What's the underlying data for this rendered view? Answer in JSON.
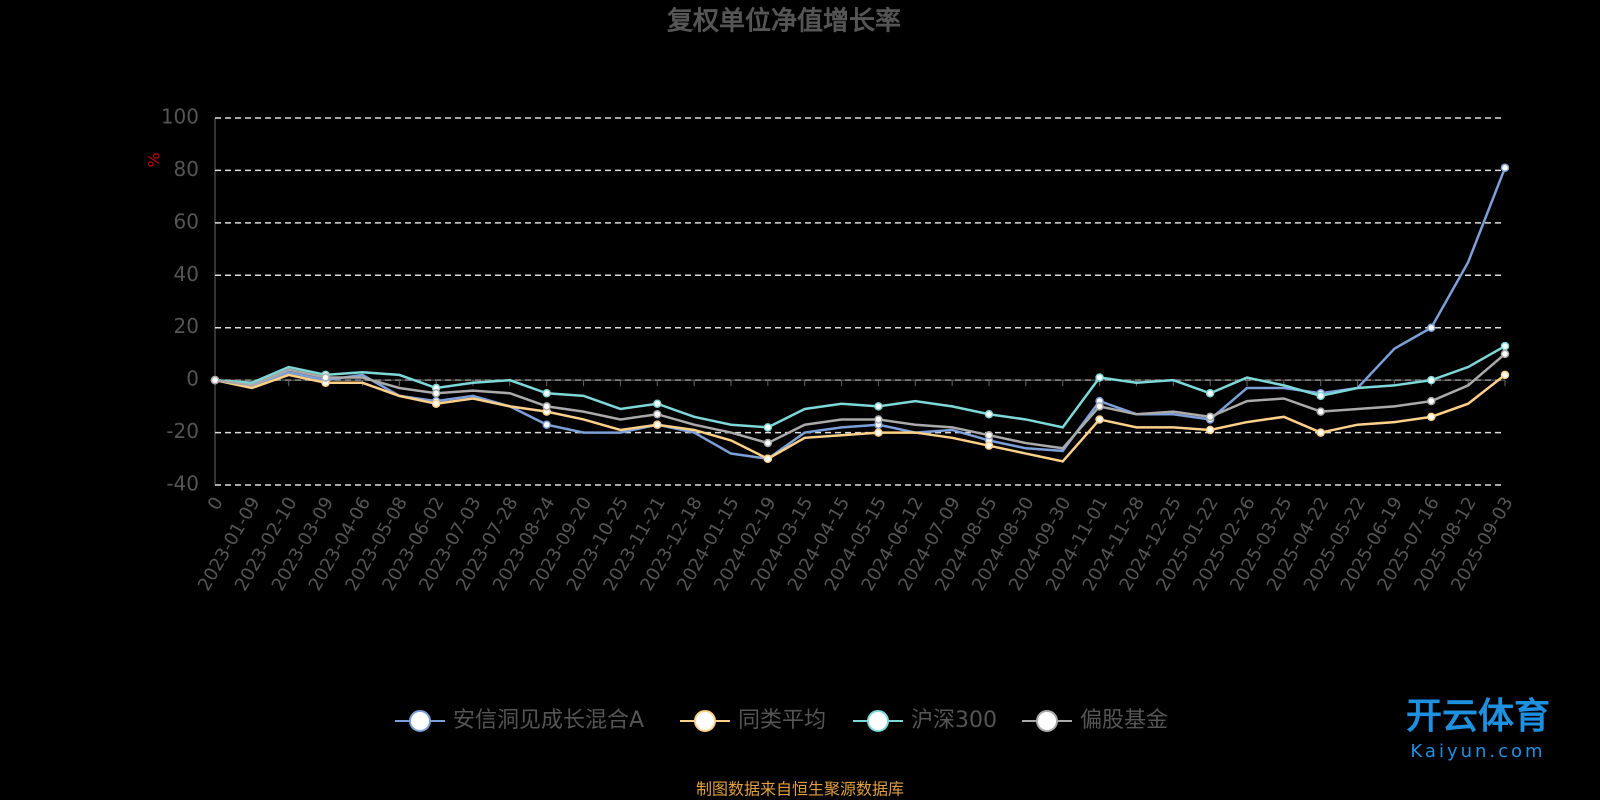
{
  "chart_data": {
    "type": "line",
    "title": "复权单位净值增长率",
    "y_label": "%",
    "categories": [
      "0",
      "2023-01-09",
      "2023-02-10",
      "2023-03-09",
      "2023-04-06",
      "2023-05-08",
      "2023-06-02",
      "2023-07-03",
      "2023-07-28",
      "2023-08-24",
      "2023-09-20",
      "2023-10-25",
      "2023-11-21",
      "2023-12-18",
      "2024-01-15",
      "2024-02-19",
      "2024-03-15",
      "2024-04-15",
      "2024-05-15",
      "2024-06-12",
      "2024-07-09",
      "2024-08-05",
      "2024-08-30",
      "2024-09-30",
      "2024-11-01",
      "2024-11-28",
      "2024-12-25",
      "2025-01-22",
      "2025-02-26",
      "2025-03-25",
      "2025-04-22",
      "2025-05-22",
      "2025-06-19",
      "2025-07-16",
      "2025-08-12",
      "2025-09-03"
    ],
    "series": [
      {
        "name": "安信洞见成长混合A",
        "color": "#7da0d8",
        "values": [
          0,
          -2,
          3,
          0,
          2,
          -6,
          -8,
          -6,
          -10,
          -17,
          -20,
          -20,
          -17,
          -20,
          -28,
          -30,
          -20,
          -18,
          -17,
          -20,
          -19,
          -23,
          -26,
          -27,
          -8,
          -13,
          -13,
          -15,
          -3,
          -3,
          -5,
          -3,
          12,
          20,
          45,
          81
        ]
      },
      {
        "name": "同类平均",
        "color": "#ffd08a",
        "values": [
          0,
          -3,
          2,
          -1,
          -1,
          -6,
          -9,
          -7,
          -10,
          -12,
          -15,
          -19,
          -17,
          -19,
          -23,
          -30,
          -22,
          -21,
          -20,
          -20,
          -22,
          -25,
          -28,
          -31,
          -15,
          -18,
          -18,
          -19,
          -16,
          -14,
          -20,
          -17,
          -16,
          -14,
          -9,
          2
        ]
      },
      {
        "name": "沪深300",
        "color": "#7fd8d8",
        "values": [
          0,
          -1,
          5,
          2,
          3,
          2,
          -3,
          -1,
          0,
          -5,
          -6,
          -11,
          -9,
          -14,
          -17,
          -18,
          -11,
          -9,
          -10,
          -8,
          -10,
          -13,
          -15,
          -18,
          1,
          -1,
          0,
          -5,
          1,
          -2,
          -6,
          -3,
          -2,
          0,
          5,
          13
        ]
      },
      {
        "name": "偏股基金",
        "color": "#aaaaaa",
        "values": [
          0,
          -2,
          4,
          1,
          1,
          -3,
          -5,
          -4,
          -5,
          -10,
          -12,
          -15,
          -13,
          -17,
          -20,
          -24,
          -17,
          -15,
          -15,
          -17,
          -18,
          -21,
          -24,
          -26,
          -10,
          -13,
          -12,
          -14,
          -8,
          -7,
          -12,
          -11,
          -10,
          -8,
          -2,
          10
        ]
      }
    ],
    "ylim": [
      -40,
      100
    ],
    "yticks": [
      -40,
      -20,
      0,
      20,
      40,
      60,
      80,
      100
    ],
    "grid": true,
    "source": "制图数据来自恒生聚源数据库",
    "watermark": {
      "brand": "开云体育",
      "url": "Kaiyun.com"
    }
  }
}
